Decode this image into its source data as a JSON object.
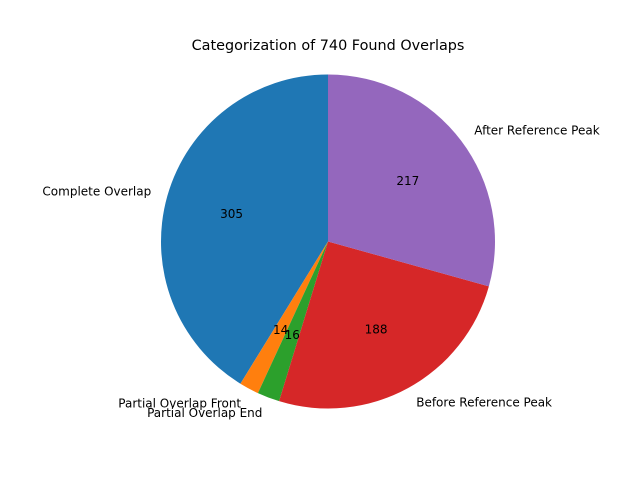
{
  "chart_data": {
    "type": "pie",
    "title": "Categorization of 740 Found Overlaps",
    "categories": [
      "Complete Overlap",
      "Partial Overlap Front",
      "Partial Overlap End",
      "Before Reference Peak",
      "After Reference Peak"
    ],
    "values": [
      305,
      14,
      16,
      188,
      217
    ],
    "colors": [
      "#1f77b4",
      "#ff7f0e",
      "#2ca02c",
      "#d62728",
      "#9467bd"
    ],
    "start_angle_deg": 90,
    "direction": "counterclockwise",
    "value_labels_shown": true,
    "legend": "none"
  }
}
